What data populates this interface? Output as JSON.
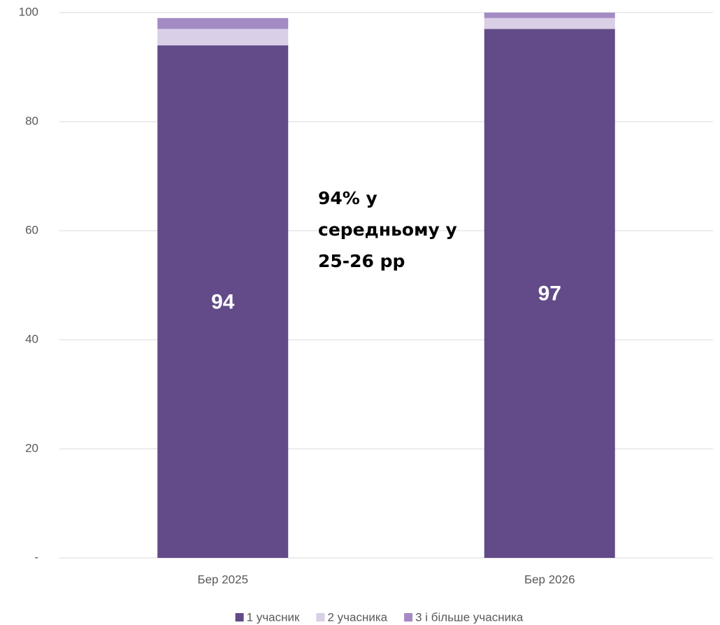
{
  "chart_data": {
    "type": "stacked-bar",
    "categories": [
      "Бер 2025",
      "Бер 2026"
    ],
    "series": [
      {
        "name": "1 учасник",
        "color": "#624b88",
        "values": [
          94,
          97
        ]
      },
      {
        "name": "2 учасника",
        "color": "#d9cfe6",
        "values": [
          3,
          2
        ]
      },
      {
        "name": "3 і більше учасника",
        "color": "#a48bc4",
        "values": [
          2,
          1
        ]
      }
    ],
    "ylim": [
      0,
      100
    ],
    "yticks": [
      {
        "value": 0,
        "label": "-"
      },
      20,
      40,
      60,
      80,
      100
    ],
    "grid": true,
    "legend": "bottom",
    "annotation": [
      "94% у",
      "середньому у",
      "25-26 рр"
    ]
  }
}
